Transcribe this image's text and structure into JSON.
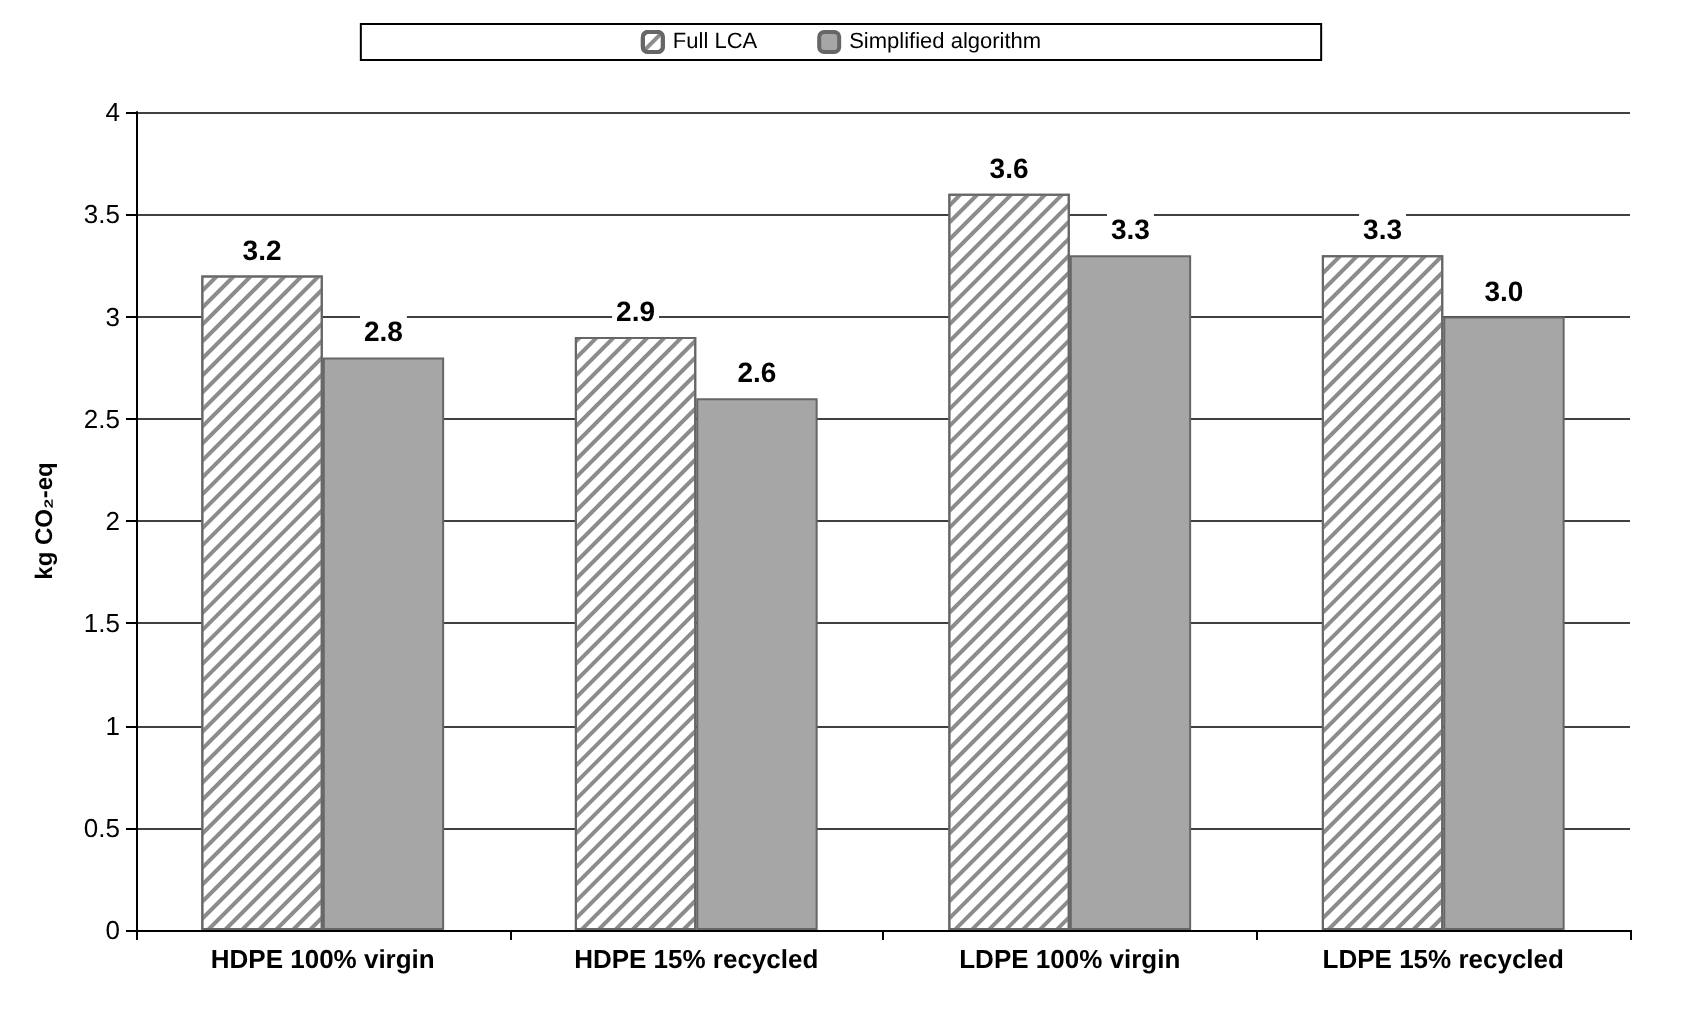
{
  "chart_data": {
    "type": "bar",
    "ylabel": "kg CO₂-eq",
    "categories": [
      "HDPE 100% virgin",
      "HDPE 15% recycled",
      "LDPE 100% virgin",
      "LDPE 15% recycled"
    ],
    "series": [
      {
        "name": "Full LCA",
        "color": "#ffffff",
        "values": [
          3.2,
          2.9,
          3.6,
          3.3
        ],
        "value_labels": [
          "3.2",
          "2.9",
          "3.6",
          "3.3"
        ]
      },
      {
        "name": "Simplified algorithm",
        "color": "#a6a6a6",
        "values": [
          2.8,
          2.6,
          3.3,
          3.0
        ],
        "value_labels": [
          "2.8",
          "2.6",
          "3.3",
          "3.0"
        ]
      }
    ],
    "ylim": [
      0,
      4
    ],
    "yticks": [
      0,
      0.5,
      1,
      1.5,
      2,
      2.5,
      3,
      3.5,
      4
    ],
    "grid": "y",
    "legend": "top"
  }
}
